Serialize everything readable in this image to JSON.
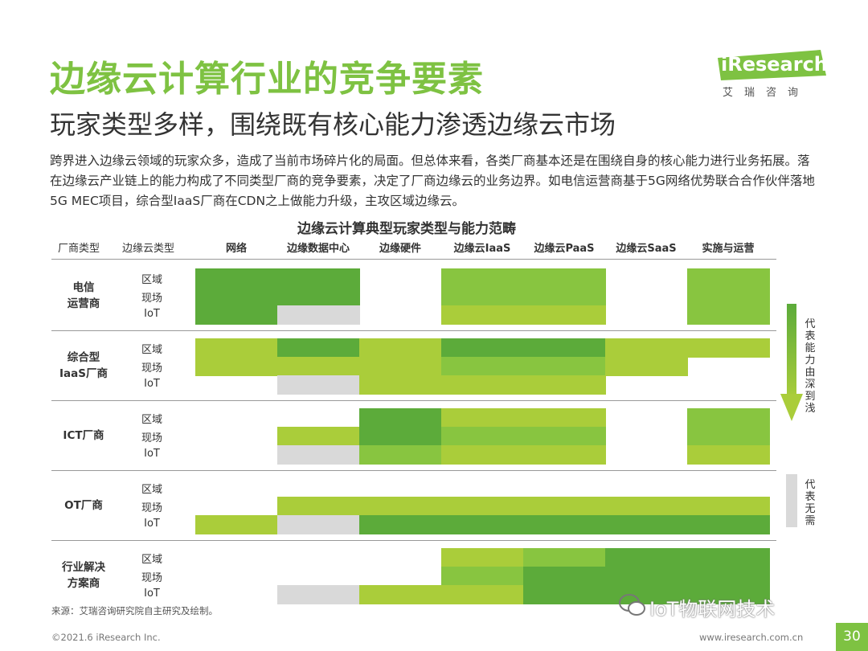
{
  "title": "边缘云计算行业的竞争要素",
  "subtitle": "玩家类型多样，围绕既有核心能力渗透边缘云市场",
  "paragraph": "跨界进入边缘云领域的玩家众多，造成了当前市场碎片化的局面。但总体来看，各类厂商基本还是在围绕自身的核心能力进行业务拓展。落在边缘云产业链上的能力构成了不同类型厂商的竞争要素，决定了厂商边缘云的业务边界。如电信运营商基于5G网络优势联合合作伙伴落地5G MEC项目，综合型IaaS厂商在CDN之上做能力升级，主攻区域边缘云。",
  "logo": {
    "word": "iResearch",
    "cn": "艾瑞咨询"
  },
  "table": {
    "title": "边缘云计算典型玩家类型与能力范畴",
    "header_vendor": "厂商类型",
    "header_type": "边缘云类型",
    "columns": [
      "网络",
      "边缘数据中心",
      "边缘硬件",
      "边缘云IaaS",
      "边缘云PaaS",
      "边缘云SaaS",
      "实施与运营"
    ],
    "subrows": [
      "区域",
      "现场",
      "IoT"
    ],
    "vendors": [
      "电信\n运营商",
      "综合型\nIaaS厂商",
      "ICT厂商",
      "OT厂商",
      "行业解决\n方案商"
    ],
    "colors": {
      "dark": "#5cab3a",
      "mid": "#88c540",
      "light": "#aacd3a",
      "gray": "#d9d9d9"
    },
    "cells": [
      [
        "D",
        "D",
        "",
        "M",
        "M",
        "",
        "M"
      ],
      [
        "D",
        "D",
        "",
        "M",
        "M",
        "",
        "M"
      ],
      [
        "D",
        "G",
        "",
        "L",
        "L",
        "",
        "M"
      ],
      [
        "L",
        "D",
        "L",
        "D",
        "D",
        "L",
        "L"
      ],
      [
        "L",
        "L",
        "L",
        "M",
        "M",
        "L",
        ""
      ],
      [
        "",
        "G",
        "L",
        "L",
        "L",
        "",
        ""
      ],
      [
        "",
        "",
        "D",
        "L",
        "L",
        "",
        "M"
      ],
      [
        "",
        "L",
        "D",
        "M",
        "M",
        "",
        "M"
      ],
      [
        "",
        "G",
        "M",
        "L",
        "L",
        "",
        "L"
      ],
      [
        "",
        "",
        "",
        "",
        "",
        "",
        ""
      ],
      [
        "",
        "L",
        "L",
        "L",
        "L",
        "L",
        "L"
      ],
      [
        "L",
        "G",
        "D",
        "D",
        "D",
        "D",
        "D"
      ],
      [
        "",
        "",
        "",
        "L",
        "M",
        "D",
        "D"
      ],
      [
        "",
        "",
        "",
        "M",
        "D",
        "D",
        "D"
      ],
      [
        "",
        "G",
        "L",
        "L",
        "D",
        "D",
        "D"
      ]
    ]
  },
  "legend": {
    "arrow_text": "代表能力由深到浅",
    "gray_text": "代表无需"
  },
  "source": "来源：艾瑞咨询研究院自主研究及绘制。",
  "footer_left": "©2021.6 iResearch Inc.",
  "footer_right": "www.iresearch.com.cn",
  "page_number": "30",
  "watermark": "IoT物联网技术"
}
